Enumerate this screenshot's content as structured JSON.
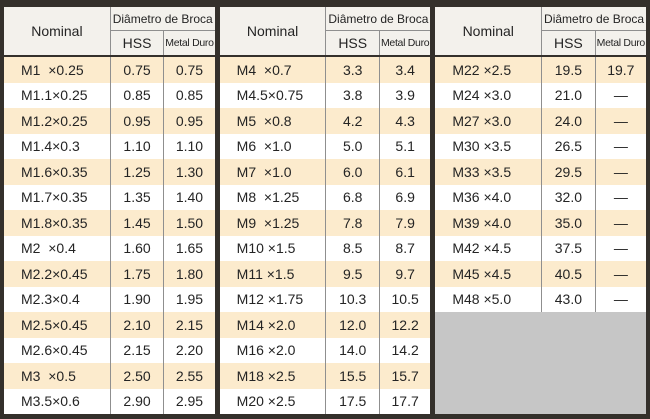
{
  "colors": {
    "frame": "#34302b",
    "stripe": "#fcebcd",
    "header_bg": "#f3f1ec",
    "line": "#8f8f8f",
    "filler": "#c6c6c6",
    "text": "#242424"
  },
  "chart_data": {
    "type": "table",
    "title": "Diâmetro de Broca",
    "header": {
      "nominal": "Nominal",
      "diameter_group": "Diâmetro de Broca",
      "hss": "HSS",
      "metal_duro": "Metal Duro"
    },
    "columns": [
      "Nominal",
      "HSS",
      "Metal Duro"
    ],
    "groups": [
      {
        "rows": [
          [
            "M1  ×0.25",
            "0.75",
            "0.75"
          ],
          [
            "M1.1×0.25",
            "0.85",
            "0.85"
          ],
          [
            "M1.2×0.25",
            "0.95",
            "0.95"
          ],
          [
            "M1.4×0.3",
            "1.10",
            "1.10"
          ],
          [
            "M1.6×0.35",
            "1.25",
            "1.30"
          ],
          [
            "M1.7×0.35",
            "1.35",
            "1.40"
          ],
          [
            "M1.8×0.35",
            "1.45",
            "1.50"
          ],
          [
            "M2  ×0.4",
            "1.60",
            "1.65"
          ],
          [
            "M2.2×0.45",
            "1.75",
            "1.80"
          ],
          [
            "M2.3×0.4",
            "1.90",
            "1.95"
          ],
          [
            "M2.5×0.45",
            "2.10",
            "2.15"
          ],
          [
            "M2.6×0.45",
            "2.15",
            "2.20"
          ],
          [
            "M3  ×0.5",
            "2.50",
            "2.55"
          ],
          [
            "M3.5×0.6",
            "2.90",
            "2.95"
          ]
        ]
      },
      {
        "rows": [
          [
            "M4  ×0.7",
            "3.3",
            "3.4"
          ],
          [
            "M4.5×0.75",
            "3.8",
            "3.9"
          ],
          [
            "M5  ×0.8",
            "4.2",
            "4.3"
          ],
          [
            "M6  ×1.0",
            "5.0",
            "5.1"
          ],
          [
            "M7  ×1.0",
            "6.0",
            "6.1"
          ],
          [
            "M8  ×1.25",
            "6.8",
            "6.9"
          ],
          [
            "M9  ×1.25",
            "7.8",
            "7.9"
          ],
          [
            "M10 ×1.5",
            "8.5",
            "8.7"
          ],
          [
            "M11 ×1.5",
            "9.5",
            "9.7"
          ],
          [
            "M12 ×1.75",
            "10.3",
            "10.5"
          ],
          [
            "M14 ×2.0",
            "12.0",
            "12.2"
          ],
          [
            "M16 ×2.0",
            "14.0",
            "14.2"
          ],
          [
            "M18 ×2.5",
            "15.5",
            "15.7"
          ],
          [
            "M20 ×2.5",
            "17.5",
            "17.7"
          ]
        ]
      },
      {
        "rows": [
          [
            "M22 ×2.5",
            "19.5",
            "19.7"
          ],
          [
            "M24 ×3.0",
            "21.0",
            "—"
          ],
          [
            "M27 ×3.0",
            "24.0",
            "—"
          ],
          [
            "M30 ×3.5",
            "26.5",
            "—"
          ],
          [
            "M33 ×3.5",
            "29.5",
            "—"
          ],
          [
            "M36 ×4.0",
            "32.0",
            "—"
          ],
          [
            "M39 ×4.0",
            "35.0",
            "—"
          ],
          [
            "M42 ×4.5",
            "37.5",
            "—"
          ],
          [
            "M45 ×4.5",
            "40.5",
            "—"
          ],
          [
            "M48 ×5.0",
            "43.0",
            "—"
          ]
        ]
      }
    ]
  }
}
